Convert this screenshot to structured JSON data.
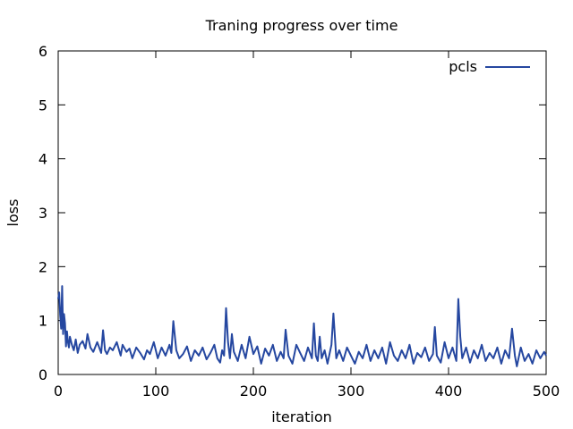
{
  "chart_data": {
    "type": "line",
    "title": "Traning progress over time",
    "xlabel": "iteration",
    "ylabel": "loss",
    "xlim": [
      0,
      500
    ],
    "ylim": [
      0,
      6
    ],
    "x_ticks": [
      0,
      100,
      200,
      300,
      400,
      500
    ],
    "y_ticks": [
      0,
      1,
      2,
      3,
      4,
      5,
      6
    ],
    "grid": false,
    "legend_position": "top-right",
    "series": [
      {
        "name": "pcls",
        "color": "#2547a0",
        "x": [
          0,
          1,
          2,
          3,
          4,
          5,
          6,
          7,
          8,
          9,
          10,
          11,
          12,
          14,
          16,
          18,
          20,
          22,
          25,
          28,
          30,
          33,
          36,
          40,
          44,
          46,
          48,
          50,
          53,
          56,
          60,
          64,
          66,
          70,
          73,
          76,
          80,
          84,
          88,
          91,
          94,
          98,
          102,
          106,
          110,
          114,
          116,
          118,
          121,
          124,
          128,
          132,
          136,
          140,
          144,
          148,
          152,
          156,
          160,
          163,
          166,
          168,
          170,
          172,
          174,
          176,
          178,
          180,
          184,
          188,
          192,
          196,
          200,
          204,
          208,
          212,
          216,
          220,
          224,
          228,
          231,
          233,
          236,
          240,
          244,
          248,
          252,
          256,
          260,
          262,
          264,
          266,
          268,
          270,
          273,
          276,
          280,
          282,
          285,
          288,
          292,
          296,
          300,
          304,
          308,
          312,
          316,
          320,
          324,
          328,
          332,
          336,
          340,
          344,
          348,
          352,
          356,
          360,
          364,
          368,
          372,
          376,
          380,
          384,
          386,
          388,
          392,
          396,
          400,
          404,
          408,
          410,
          412,
          414,
          418,
          422,
          426,
          430,
          434,
          438,
          442,
          446,
          450,
          454,
          458,
          462,
          465,
          468,
          470,
          474,
          478,
          482,
          486,
          490,
          494,
          498,
          500
        ],
        "y": [
          1.4,
          1.52,
          1.1,
          0.85,
          1.64,
          0.75,
          1.12,
          0.95,
          0.52,
          0.8,
          0.6,
          0.5,
          0.7,
          0.55,
          0.45,
          0.65,
          0.4,
          0.55,
          0.62,
          0.48,
          0.75,
          0.5,
          0.42,
          0.6,
          0.4,
          0.82,
          0.45,
          0.38,
          0.5,
          0.45,
          0.6,
          0.35,
          0.55,
          0.42,
          0.48,
          0.3,
          0.5,
          0.4,
          0.28,
          0.45,
          0.38,
          0.6,
          0.3,
          0.5,
          0.35,
          0.55,
          0.4,
          0.99,
          0.45,
          0.3,
          0.38,
          0.52,
          0.25,
          0.45,
          0.35,
          0.5,
          0.28,
          0.4,
          0.55,
          0.3,
          0.22,
          0.45,
          0.35,
          1.23,
          0.6,
          0.3,
          0.75,
          0.42,
          0.25,
          0.55,
          0.3,
          0.7,
          0.38,
          0.52,
          0.2,
          0.48,
          0.35,
          0.55,
          0.25,
          0.42,
          0.3,
          0.83,
          0.35,
          0.2,
          0.55,
          0.4,
          0.25,
          0.5,
          0.3,
          0.95,
          0.35,
          0.25,
          0.7,
          0.3,
          0.45,
          0.2,
          0.55,
          1.13,
          0.3,
          0.45,
          0.25,
          0.5,
          0.35,
          0.2,
          0.42,
          0.3,
          0.55,
          0.25,
          0.45,
          0.3,
          0.5,
          0.2,
          0.6,
          0.35,
          0.25,
          0.45,
          0.3,
          0.55,
          0.2,
          0.4,
          0.32,
          0.5,
          0.25,
          0.38,
          0.88,
          0.35,
          0.22,
          0.6,
          0.3,
          0.5,
          0.25,
          1.4,
          0.7,
          0.3,
          0.5,
          0.22,
          0.45,
          0.3,
          0.55,
          0.25,
          0.4,
          0.3,
          0.5,
          0.2,
          0.45,
          0.3,
          0.85,
          0.35,
          0.15,
          0.5,
          0.25,
          0.38,
          0.2,
          0.45,
          0.3,
          0.42,
          0.35
        ]
      }
    ]
  }
}
